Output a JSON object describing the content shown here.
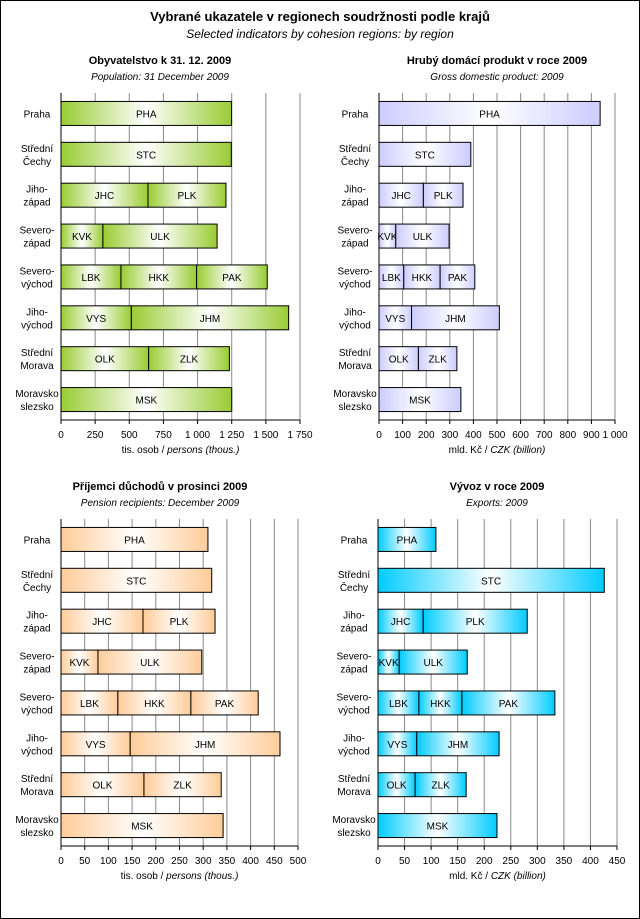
{
  "title": "Vybrané ukazatele v regionech soudržnosti podle krajů",
  "subtitle": "Selected indicators by cohesion regions: by region",
  "rows": [
    [
      "Praha"
    ],
    [
      "Střední",
      "Čechy"
    ],
    [
      "Jiho-",
      "západ"
    ],
    [
      "Severo-",
      "západ"
    ],
    [
      "Severo-",
      "východ"
    ],
    [
      "Jiho-",
      "východ"
    ],
    [
      "Střední",
      "Morava"
    ],
    [
      "Moravsko",
      "slezsko"
    ]
  ],
  "chart_data": [
    {
      "type": "bar",
      "stacked": true,
      "orientation": "horizontal",
      "title": "Obyvatelstvo k 31. 12. 2009",
      "subtitle": "Population: 31 December 2009",
      "xlabel_cz": "tis. osob / ",
      "xlabel_en": "persons (thous.)",
      "xlim": [
        0,
        1750
      ],
      "ticks": [
        0,
        250,
        500,
        750,
        1000,
        1250,
        1500,
        1750
      ],
      "tick_labels": [
        "0",
        "250",
        "500",
        "750",
        "1 000",
        "1 250",
        "1 500",
        "1 750"
      ],
      "color": "#99cc33",
      "segments": [
        [
          [
            "PHA",
            1249
          ]
        ],
        [
          [
            "STC",
            1247
          ]
        ],
        [
          [
            "JHC",
            637
          ],
          [
            "PLK",
            571
          ]
        ],
        [
          [
            "KVK",
            307
          ],
          [
            "ULK",
            836
          ]
        ],
        [
          [
            "LBK",
            439
          ],
          [
            "HKK",
            554
          ],
          [
            "PAK",
            517
          ]
        ],
        [
          [
            "VYS",
            515
          ],
          [
            "JHM",
            1152
          ]
        ],
        [
          [
            "OLK",
            642
          ],
          [
            "ZLK",
            591
          ]
        ],
        [
          [
            "MSK",
            1250
          ]
        ]
      ]
    },
    {
      "type": "bar",
      "stacked": true,
      "orientation": "horizontal",
      "title": "Hrubý domácí produkt v roce 2009",
      "subtitle": "Gross domestic product: 2009",
      "xlabel_cz": "mld. Kč / ",
      "xlabel_en": "CZK (billion)",
      "xlim": [
        0,
        1000
      ],
      "ticks": [
        0,
        100,
        200,
        300,
        400,
        500,
        600,
        700,
        800,
        900,
        1000
      ],
      "tick_labels": [
        "0",
        "100",
        "200",
        "300",
        "400",
        "500",
        "600",
        "700",
        "800",
        "900",
        "1 000"
      ],
      "color": "#ccccff",
      "segments": [
        [
          [
            "PHA",
            937
          ]
        ],
        [
          [
            "STC",
            389
          ]
        ],
        [
          [
            "JHC",
            188
          ],
          [
            "PLK",
            168
          ]
        ],
        [
          [
            "KVK",
            71
          ],
          [
            "ULK",
            226
          ]
        ],
        [
          [
            "LBK",
            105
          ],
          [
            "HKK",
            154
          ],
          [
            "PAK",
            147
          ]
        ],
        [
          [
            "VYS",
            138
          ],
          [
            "JHM",
            372
          ]
        ],
        [
          [
            "OLK",
            167
          ],
          [
            "ZLK",
            163
          ]
        ],
        [
          [
            "MSK",
            347
          ]
        ]
      ]
    },
    {
      "type": "bar",
      "stacked": true,
      "orientation": "horizontal",
      "title": "Příjemci důchodů v prosinci 2009",
      "subtitle": "Pension recipients: December 2009",
      "xlabel_cz": "tis. osob / ",
      "xlabel_en": "persons (thous.)",
      "xlim": [
        0,
        500
      ],
      "ticks": [
        0,
        50,
        100,
        150,
        200,
        250,
        300,
        350,
        400,
        450,
        500
      ],
      "tick_labels": [
        "0",
        "50",
        "100",
        "150",
        "200",
        "250",
        "300",
        "350",
        "400",
        "450",
        "500"
      ],
      "color": "#ffcc99",
      "segments": [
        [
          [
            "PHA",
            310
          ]
        ],
        [
          [
            "STC",
            318
          ]
        ],
        [
          [
            "JHC",
            173
          ],
          [
            "PLK",
            152
          ]
        ],
        [
          [
            "KVK",
            78
          ],
          [
            "ULK",
            219
          ]
        ],
        [
          [
            "LBK",
            120
          ],
          [
            "HKK",
            154
          ],
          [
            "PAK",
            142
          ]
        ],
        [
          [
            "VYS",
            146
          ],
          [
            "JHM",
            316
          ]
        ],
        [
          [
            "OLK",
            175
          ],
          [
            "ZLK",
            163
          ]
        ],
        [
          [
            "MSK",
            342
          ]
        ]
      ]
    },
    {
      "type": "bar",
      "stacked": true,
      "orientation": "horizontal",
      "title": "Vývoz v roce 2009",
      "subtitle": "Exports: 2009",
      "xlabel_cz": "mld. Kč / ",
      "xlabel_en": "CZK (billion)",
      "xlim": [
        0,
        450
      ],
      "ticks": [
        0,
        50,
        100,
        150,
        200,
        250,
        300,
        350,
        400,
        450
      ],
      "tick_labels": [
        "0",
        "50",
        "100",
        "150",
        "200",
        "250",
        "300",
        "350",
        "400",
        "450"
      ],
      "color": "#00ccff",
      "segments": [
        [
          [
            "PHA",
            109
          ]
        ],
        [
          [
            "STC",
            426
          ]
        ],
        [
          [
            "JHC",
            85
          ],
          [
            "PLK",
            196
          ]
        ],
        [
          [
            "KVK",
            40
          ],
          [
            "ULK",
            128
          ]
        ],
        [
          [
            "LBK",
            77
          ],
          [
            "HKK",
            81
          ],
          [
            "PAK",
            175
          ]
        ],
        [
          [
            "VYS",
            73
          ],
          [
            "JHM",
            155
          ]
        ],
        [
          [
            "OLK",
            70
          ],
          [
            "ZLK",
            96
          ]
        ],
        [
          [
            "MSK",
            224
          ]
        ]
      ]
    }
  ]
}
